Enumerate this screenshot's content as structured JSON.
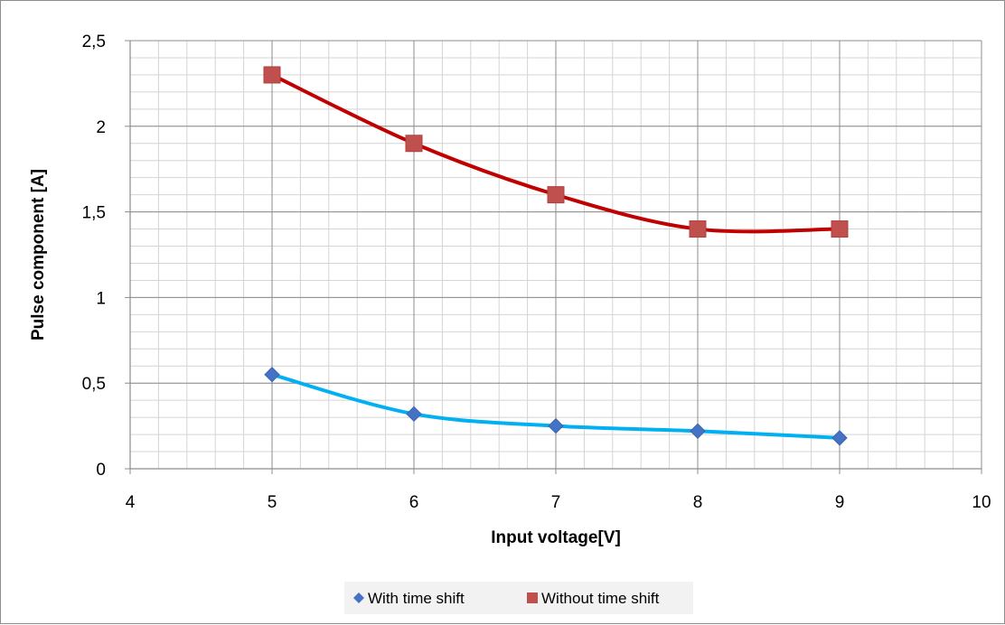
{
  "chart_data": {
    "type": "scatter",
    "title": "",
    "xlabel": "Input voltage[V]",
    "ylabel": "Pulse component [A]",
    "xlim": [
      4,
      10
    ],
    "ylim": [
      0,
      2.5
    ],
    "x_ticks": [
      "4",
      "5",
      "6",
      "7",
      "8",
      "9",
      "10"
    ],
    "y_ticks": [
      "0",
      "0,5",
      "1",
      "1,5",
      "2",
      "2,5"
    ],
    "grid": "on",
    "legend_position": "bottom",
    "series": [
      {
        "name": "With time shift",
        "color": "#00B0F0",
        "marker_color": "#4472C4",
        "marker": "diamond",
        "x": [
          5,
          6,
          7,
          8,
          9
        ],
        "y": [
          0.55,
          0.32,
          0.25,
          0.22,
          0.18
        ]
      },
      {
        "name": "Without time shift",
        "color": "#C00000",
        "marker_color": "#C0504D",
        "marker": "square",
        "x": [
          5,
          6,
          7,
          8,
          9
        ],
        "y": [
          2.3,
          1.9,
          1.6,
          1.4,
          1.4
        ]
      }
    ]
  }
}
